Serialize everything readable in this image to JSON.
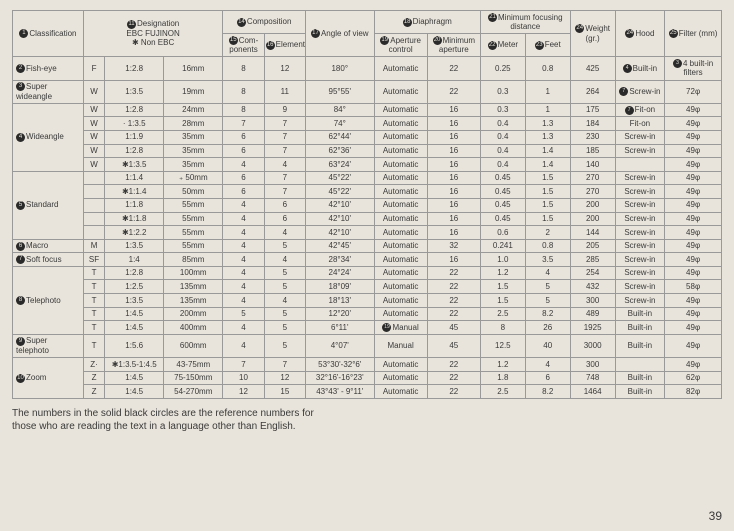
{
  "headers": {
    "classification": "Classification",
    "designation": "Designation",
    "designation_sub": "EBC FUJINON",
    "designation_sub2": "✱ Non EBC",
    "composition": "Composition",
    "components": "Com-\nponents",
    "elements": "Elements",
    "angle": "Angle of view",
    "diaphragm": "Diaphragm",
    "aperture_control": "Aperture\ncontrol",
    "min_aperture": "Minimum\naperture",
    "min_focus": "Minimum focusing\ndistance",
    "meter": "Meter",
    "feet": "Feet",
    "weight": "Weight\n(gr.)",
    "hood": "Hood",
    "filter": "Filter (mm)",
    "circ1": "1",
    "circ2": "2",
    "circ3": "3",
    "circ4": "4",
    "circ5": "5",
    "circ6": "6",
    "circ7": "7",
    "circ8": "8",
    "circ9": "9",
    "circ10": "10",
    "circ11": "11",
    "circ12": "12",
    "circ13": "13",
    "circ14": "14",
    "circ15": "15",
    "circ16": "16",
    "circ17": "17",
    "circ18": "18",
    "circ19": "19",
    "circ20": "20",
    "circ21": "21",
    "circ22": "22",
    "circ23": "23",
    "circ24": "24",
    "circ25": "25"
  },
  "groups": [
    {
      "name": "Fish-eye",
      "circ": "2",
      "rows": [
        {
          "t": "F",
          "ap": "1:2.8",
          "fl": "16mm",
          "c": "8",
          "e": "12",
          "ang": "180°",
          "ac": "Automatic",
          "ma": "22",
          "m": "0.25",
          "ft": "0.8",
          "w": "425",
          "hood": "Built-in",
          "filt": "4 built-in\nfilters",
          "fc": "③",
          "hc": "④"
        }
      ]
    },
    {
      "name": "Super\nwideangle",
      "circ": "3",
      "rows": [
        {
          "t": "W",
          "ap": "1:3.5",
          "fl": "19mm",
          "c": "8",
          "e": "11",
          "ang": "95°55'",
          "ac": "Automatic",
          "ma": "22",
          "m": "0.3",
          "ft": "1",
          "w": "264",
          "hood": "Screw-in",
          "filt": "72φ",
          "hc": "⑦"
        }
      ]
    },
    {
      "name": "Wideangle",
      "circ": "4",
      "rows": [
        {
          "t": "W",
          "ap": "1:2.8",
          "fl": "24mm",
          "c": "8",
          "e": "9",
          "ang": "84°",
          "ac": "Automatic",
          "ma": "16",
          "m": "0.3",
          "ft": "1",
          "w": "175",
          "hood": "Fit-on",
          "filt": "49φ",
          "hc": "⑨"
        },
        {
          "t": "W",
          "ap": "· 1:3.5",
          "fl": "28mm",
          "c": "7",
          "e": "7",
          "ang": "74°",
          "ac": "Automatic",
          "ma": "16",
          "m": "0.4",
          "ft": "1.3",
          "w": "184",
          "hood": "Fit-on",
          "filt": "49φ"
        },
        {
          "t": "W",
          "ap": "1:1.9",
          "fl": "35mm",
          "c": "6",
          "e": "7",
          "ang": "62°44'",
          "ac": "Automatic",
          "ma": "16",
          "m": "0.4",
          "ft": "1.3",
          "w": "230",
          "hood": "Screw-in",
          "filt": "49φ"
        },
        {
          "t": "W",
          "ap": "1:2.8",
          "fl": "35mm",
          "c": "6",
          "e": "7",
          "ang": "62°36'",
          "ac": "Automatic",
          "ma": "16",
          "m": "0.4",
          "ft": "1.4",
          "w": "185",
          "hood": "Screw-in",
          "filt": "49φ"
        },
        {
          "t": "W",
          "ap": "✱1:3.5",
          "fl": "35mm",
          "c": "4",
          "e": "4",
          "ang": "63°24'",
          "ac": "Automatic",
          "ma": "16",
          "m": "0.4",
          "ft": "1.4",
          "w": "140",
          "hood": "",
          "filt": "49φ"
        }
      ]
    },
    {
      "name": "Standard",
      "circ": "5",
      "rows": [
        {
          "t": "",
          "ap": "1:1.4",
          "fl": "₊ 50mm",
          "c": "6",
          "e": "7",
          "ang": "45°22'",
          "ac": "Automatic",
          "ma": "16",
          "m": "0.45",
          "ft": "1.5",
          "w": "270",
          "hood": "Screw-in",
          "filt": "49φ"
        },
        {
          "t": "",
          "ap": "✱1:1.4",
          "fl": "50mm",
          "c": "6",
          "e": "7",
          "ang": "45°22'",
          "ac": "Automatic",
          "ma": "16",
          "m": "0.45",
          "ft": "1.5",
          "w": "270",
          "hood": "Screw-in",
          "filt": "49φ"
        },
        {
          "t": "",
          "ap": "1:1.8",
          "fl": "55mm",
          "c": "4",
          "e": "6",
          "ang": "42°10'",
          "ac": "Automatic",
          "ma": "16",
          "m": "0.45",
          "ft": "1.5",
          "w": "200",
          "hood": "Screw-in",
          "filt": "49φ"
        },
        {
          "t": "",
          "ap": "✱1:1.8",
          "fl": "55mm",
          "c": "4",
          "e": "6",
          "ang": "42°10'",
          "ac": "Automatic",
          "ma": "16",
          "m": "0.45",
          "ft": "1.5",
          "w": "200",
          "hood": "Screw-in",
          "filt": "49φ"
        },
        {
          "t": "",
          "ap": "✱1:2.2",
          "fl": "55mm",
          "c": "4",
          "e": "4",
          "ang": "42°10'",
          "ac": "Automatic",
          "ma": "16",
          "m": "0.6",
          "ft": "2",
          "w": "144",
          "hood": "Screw-in",
          "filt": "49φ"
        }
      ]
    },
    {
      "name": "Macro",
      "circ": "6",
      "rows": [
        {
          "t": "M",
          "ap": "1:3.5",
          "fl": "55mm",
          "c": "4",
          "e": "5",
          "ang": "42°45'",
          "ac": "Automatic",
          "ma": "32",
          "m": "0.241",
          "ft": "0.8",
          "w": "205",
          "hood": "Screw-in",
          "filt": "49φ"
        }
      ]
    },
    {
      "name": "Soft focus",
      "circ": "7",
      "rows": [
        {
          "t": "SF",
          "ap": "1:4",
          "fl": "85mm",
          "c": "4",
          "e": "4",
          "ang": "28°34'",
          "ac": "Automatic",
          "ma": "16",
          "m": "1.0",
          "ft": "3.5",
          "w": "285",
          "hood": "Screw-in",
          "filt": "49φ"
        }
      ]
    },
    {
      "name": "Telephoto",
      "circ": "8",
      "rows": [
        {
          "t": "T",
          "ap": "1:2.8",
          "fl": "100mm",
          "c": "4",
          "e": "5",
          "ang": "24°24'",
          "ac": "Automatic",
          "ma": "22",
          "m": "1.2",
          "ft": "4",
          "w": "254",
          "hood": "Screw-in",
          "filt": "49φ"
        },
        {
          "t": "T",
          "ap": "1:2.5",
          "fl": "135mm",
          "c": "4",
          "e": "5",
          "ang": "18°09'",
          "ac": "Automatic",
          "ma": "22",
          "m": "1.5",
          "ft": "5",
          "w": "432",
          "hood": "Screw-in",
          "filt": "58φ"
        },
        {
          "t": "T",
          "ap": "1:3.5",
          "fl": "135mm",
          "c": "4",
          "e": "4",
          "ang": "18°13'",
          "ac": "Automatic",
          "ma": "22",
          "m": "1.5",
          "ft": "5",
          "w": "300",
          "hood": "Screw-in",
          "filt": "49φ"
        },
        {
          "t": "T",
          "ap": "1:4.5",
          "fl": "200mm",
          "c": "5",
          "e": "5",
          "ang": "12°20'",
          "ac": "Automatic",
          "ma": "22",
          "m": "2.5",
          "ft": "8.2",
          "w": "489",
          "hood": "Built-in",
          "filt": "49φ"
        },
        {
          "t": "T",
          "ap": "1:4.5",
          "fl": "400mm",
          "c": "4",
          "e": "5",
          "ang": "6°11'",
          "ac": "Manual",
          "acc": "⑲",
          "ma": "45",
          "m": "8",
          "ft": "26",
          "w": "1925",
          "hood": "Built-in",
          "filt": "49φ"
        }
      ]
    },
    {
      "name": "Super\ntelephoto",
      "circ": "9",
      "rows": [
        {
          "t": "T",
          "ap": "1:5.6",
          "fl": "600mm",
          "c": "4",
          "e": "5",
          "ang": "4°07'",
          "ac": "Manual",
          "ma": "45",
          "m": "12.5",
          "ft": "40",
          "w": "3000",
          "hood": "Built-in",
          "filt": "49φ"
        }
      ]
    },
    {
      "name": "Zoom",
      "circ": "10",
      "rows": [
        {
          "t": "Z·",
          "ap": "✱1:3.5-1:4.5",
          "fl": "43-75mm",
          "c": "7",
          "e": "7",
          "ang": "53°30'-32°6'",
          "ac": "Automatic",
          "ma": "22",
          "m": "1.2",
          "ft": "4",
          "w": "300",
          "hood": "",
          "filt": "49φ"
        },
        {
          "t": "Z",
          "ap": "1:4.5",
          "fl": "75-150mm",
          "c": "10",
          "e": "12",
          "ang": "32°16'-16°23'",
          "ac": "Automatic",
          "ma": "22",
          "m": "1.8",
          "ft": "6",
          "w": "748",
          "hood": "Built-in",
          "filt": "62φ"
        },
        {
          "t": "Z",
          "ap": "1:4.5",
          "fl": "54-270mm",
          "c": "12",
          "e": "15",
          "ang": "43°43' - 9°11'",
          "ac": "Automatic",
          "ma": "22",
          "m": "2.5",
          "ft": "8.2",
          "w": "1464",
          "hood": "Built-in",
          "filt": "82φ"
        }
      ]
    }
  ],
  "footnote": "The numbers in the solid black circles are the reference numbers for\nthose who are reading the text in a language other than English.",
  "pagenum": "39"
}
